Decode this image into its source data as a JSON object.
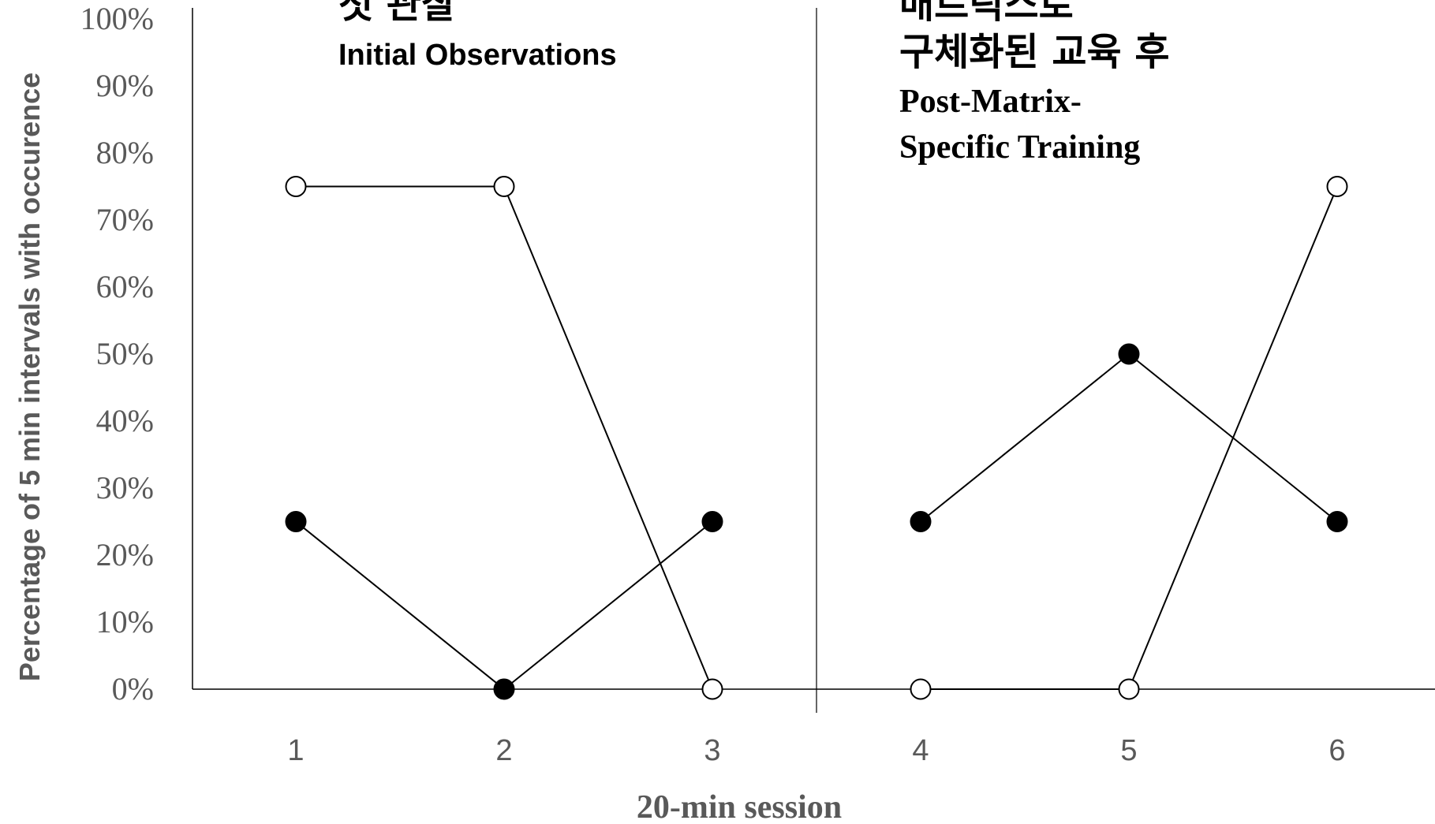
{
  "chart_data": {
    "type": "line",
    "xlabel": "20-min session",
    "ylabel": "Percentage of 5 min intervals with occurence",
    "ylim": [
      0,
      100
    ],
    "yticks": [
      "0%",
      "10%",
      "20%",
      "30%",
      "40%",
      "50%",
      "60%",
      "70%",
      "80%",
      "90%",
      "100%"
    ],
    "categories": [
      "1",
      "2",
      "3",
      "4",
      "5",
      "6"
    ],
    "grid": false,
    "legend": "none",
    "phases": [
      {
        "label_ko": "첫 관찰",
        "label_en": "Initial Observations",
        "sessions": [
          "1",
          "2",
          "3"
        ]
      },
      {
        "label_ko": "매트릭스로 구체화된 교육 후",
        "label_en": "Post-Matrix-Specific Training",
        "sessions": [
          "4",
          "5",
          "6"
        ]
      }
    ],
    "series": [
      {
        "marker": "filled-circle",
        "color": "#000000",
        "values": [
          25,
          0,
          25,
          25,
          50,
          25
        ]
      },
      {
        "marker": "open-circle",
        "color": "#000000",
        "values": [
          75,
          75,
          0,
          0,
          0,
          75
        ]
      }
    ]
  }
}
